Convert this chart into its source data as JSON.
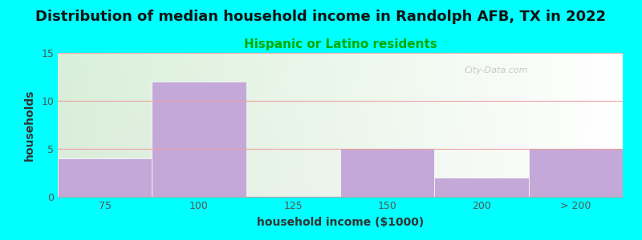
{
  "title": "Distribution of median household income in Randolph AFB, TX in 2022",
  "subtitle": "Hispanic or Latino residents",
  "xlabel": "household income ($1000)",
  "ylabel": "households",
  "background_color": "#00FFFF",
  "bar_color": "#c4a8d8",
  "categories": [
    "75",
    "100",
    "125",
    "150",
    "200",
    "> 200"
  ],
  "values": [
    4,
    12,
    0,
    5,
    2,
    5
  ],
  "ylim": [
    0,
    15
  ],
  "yticks": [
    0,
    5,
    10,
    15
  ],
  "grid_color": "#f0a0a0",
  "title_fontsize": 13,
  "subtitle_fontsize": 11,
  "subtitle_color": "#00aa00",
  "axis_label_fontsize": 10,
  "tick_fontsize": 9,
  "tick_color": "#555555",
  "title_color": "#111111",
  "watermark_text": "City-Data.com",
  "bar_left_edges": [
    0,
    1,
    2,
    3,
    4,
    5
  ],
  "n_bars": 6,
  "plot_bg_left_color": "#d8f0d0",
  "plot_bg_right_color": "#f8fff8",
  "plot_bg_top_color": "#e8f8e0",
  "plot_bg_bottom_color": "#ffffff"
}
